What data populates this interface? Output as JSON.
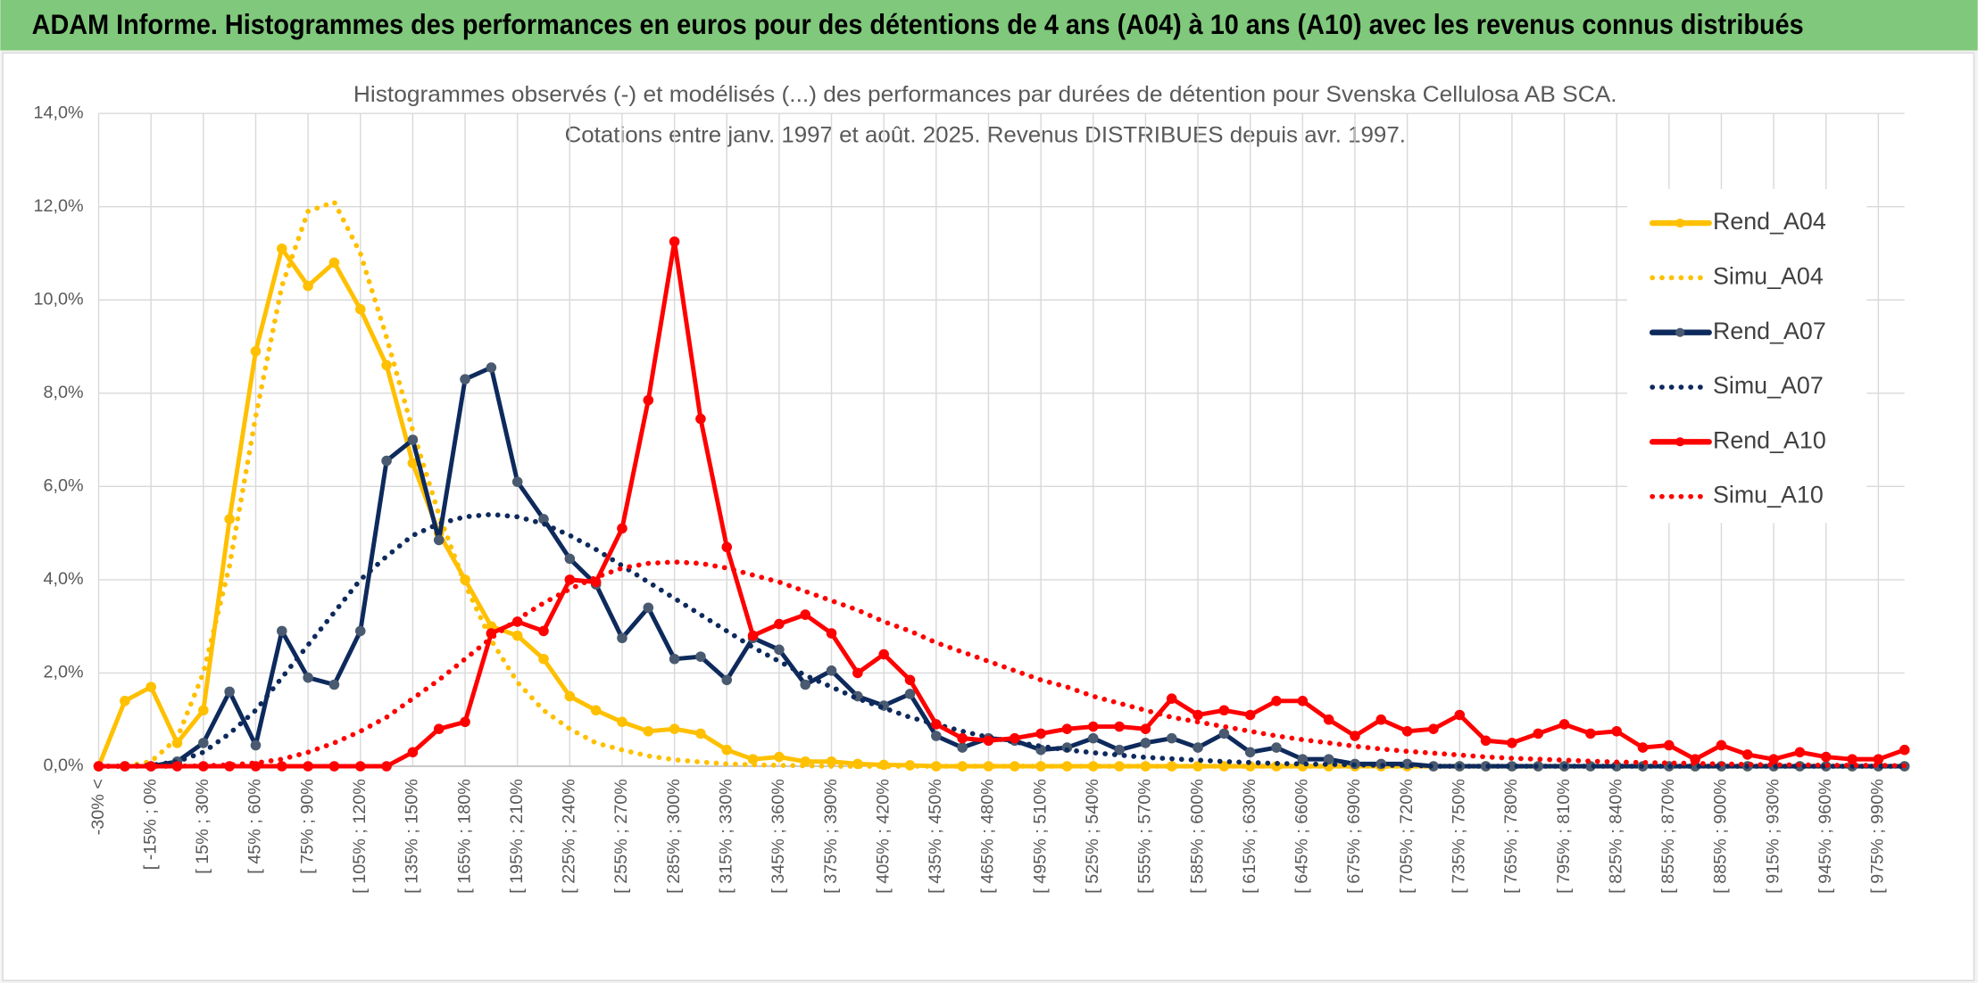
{
  "header": {
    "title": "ADAM Informe. Histogrammes des performances en euros pour des détentions de 4 ans (A04) à 10 ans (A10) avec les revenus connus distribués"
  },
  "chart_data": {
    "type": "line",
    "title": [
      "Histogrammes observés (-) et modélisés (...) des performances par durées de détention pour Svenska Cellulosa AB SCA.",
      "Cotations entre janv. 1997 et août. 2025. Revenus DISTRIBUES depuis avr. 1997."
    ],
    "categories": [
      "-30% <",
      null,
      "[ -15% ; 0%",
      null,
      "[ 15% ; 30%",
      null,
      "[ 45% ; 60%",
      null,
      "[ 75% ; 90%",
      null,
      "[ 105% ; 120%",
      null,
      "[ 135% ; 150%",
      null,
      "[ 165% ; 180%",
      null,
      "[ 195% ; 210%",
      null,
      "[ 225% ; 240%",
      null,
      "[ 255% ; 270%",
      null,
      "[ 285% ; 300%",
      null,
      "[ 315% ; 330%",
      null,
      "[ 345% ; 360%",
      null,
      "[ 375% ; 390%",
      null,
      "[ 405% ; 420%",
      null,
      "[ 435% ; 450%",
      null,
      "[ 465% ; 480%",
      null,
      "[ 495% ; 510%",
      null,
      "[ 525% ; 540%",
      null,
      "[ 555% ; 570%",
      null,
      "[ 585% ; 600%",
      null,
      "[ 615% ; 630%",
      null,
      "[ 645% ; 660%",
      null,
      "[ 675% ; 690%",
      null,
      "[ 705% ; 720%",
      null,
      "[ 735% ; 750%",
      null,
      "[ 765% ; 780%",
      null,
      "[ 795% ; 810%",
      null,
      "[ 825% ; 840%",
      null,
      "[ 855% ; 870%",
      null,
      "[ 885% ; 900%",
      null,
      "[ 915% ; 930%",
      null,
      "[ 945% ; 960%",
      null,
      "[ 975% ; 990%",
      null
    ],
    "series": [
      {
        "name": "Rend_A04",
        "color": "#ffc000",
        "dotted": false,
        "markers": true,
        "values": [
          0,
          1.4,
          1.7,
          0.5,
          1.2,
          5.3,
          8.9,
          11.1,
          10.3,
          10.8,
          9.8,
          8.6,
          6.5,
          5.0,
          4.0,
          3.0,
          2.8,
          2.3,
          1.5,
          1.2,
          0.95,
          0.75,
          0.8,
          0.7,
          0.35,
          0.15,
          0.2,
          0.1,
          0.1,
          0.05,
          0.03,
          0.02,
          0,
          0,
          0,
          0,
          0,
          0,
          0,
          0,
          0,
          0,
          0,
          0,
          0,
          0,
          0,
          0,
          0,
          0,
          0,
          0,
          0,
          0,
          0,
          0,
          0,
          0,
          0,
          0,
          0,
          0,
          0,
          0,
          0,
          0,
          0,
          0,
          0,
          0
        ]
      },
      {
        "name": "Simu_A04",
        "color": "#ffc000",
        "dotted": true,
        "markers": false,
        "values": [
          0,
          0,
          0.1,
          0.6,
          2.0,
          4.3,
          7.5,
          10.3,
          11.9,
          12.1,
          11.0,
          9.2,
          7.2,
          5.4,
          3.9,
          2.7,
          1.8,
          1.2,
          0.8,
          0.5,
          0.35,
          0.22,
          0.14,
          0.09,
          0.05,
          0.03,
          0.02,
          0.01,
          0,
          0,
          0,
          0,
          0,
          0,
          0,
          0,
          0,
          0,
          0,
          0,
          0,
          0,
          0,
          0,
          0,
          0,
          0,
          0,
          0,
          0,
          0,
          0,
          0,
          0,
          0,
          0,
          0,
          0,
          0,
          0,
          0,
          0,
          0,
          0,
          0,
          0,
          0,
          0,
          0,
          0
        ]
      },
      {
        "name": "Rend_A07",
        "color": "#0e2a5c",
        "marker_color": "#4a5a70",
        "dotted": false,
        "markers": true,
        "values": [
          0,
          0,
          0,
          0.1,
          0.5,
          1.6,
          0.45,
          2.9,
          1.9,
          1.75,
          2.9,
          6.55,
          7.0,
          4.85,
          8.3,
          8.55,
          6.1,
          5.3,
          4.45,
          3.9,
          2.75,
          3.4,
          2.3,
          2.35,
          1.85,
          2.75,
          2.5,
          1.75,
          2.05,
          1.5,
          1.3,
          1.55,
          0.65,
          0.4,
          0.6,
          0.55,
          0.35,
          0.4,
          0.6,
          0.35,
          0.5,
          0.6,
          0.4,
          0.7,
          0.3,
          0.4,
          0.15,
          0.15,
          0.05,
          0.05,
          0.05,
          0,
          0,
          0,
          0,
          0,
          0,
          0,
          0,
          0,
          0,
          0,
          0,
          0,
          0,
          0,
          0,
          0,
          0,
          0
        ]
      },
      {
        "name": "Simu_A07",
        "color": "#0e2a5c",
        "dotted": true,
        "markers": false,
        "values": [
          0,
          0,
          0.02,
          0.1,
          0.3,
          0.7,
          1.2,
          1.9,
          2.6,
          3.3,
          4.0,
          4.5,
          4.95,
          5.2,
          5.35,
          5.4,
          5.35,
          5.2,
          4.95,
          4.65,
          4.3,
          3.95,
          3.6,
          3.25,
          2.9,
          2.55,
          2.25,
          1.95,
          1.7,
          1.45,
          1.25,
          1.05,
          0.9,
          0.75,
          0.62,
          0.52,
          0.43,
          0.35,
          0.29,
          0.24,
          0.19,
          0.16,
          0.13,
          0.1,
          0.08,
          0.06,
          0.05,
          0.04,
          0.03,
          0.02,
          0.02,
          0,
          0,
          0,
          0,
          0,
          0,
          0,
          0,
          0,
          0,
          0,
          0,
          0,
          0,
          0,
          0,
          0,
          0,
          0
        ]
      },
      {
        "name": "Rend_A10",
        "color": "#ff0000",
        "dotted": false,
        "markers": true,
        "values": [
          0,
          0,
          0,
          0,
          0,
          0,
          0,
          0,
          0,
          0,
          0,
          0,
          0.3,
          0.8,
          0.95,
          2.85,
          3.1,
          2.9,
          4.0,
          3.95,
          5.1,
          7.85,
          11.25,
          7.45,
          4.7,
          2.8,
          3.05,
          3.25,
          2.85,
          2.0,
          2.4,
          1.85,
          0.9,
          0.6,
          0.55,
          0.6,
          0.7,
          0.8,
          0.85,
          0.85,
          0.8,
          1.45,
          1.1,
          1.2,
          1.1,
          1.4,
          1.4,
          1.0,
          0.65,
          1.0,
          0.75,
          0.8,
          1.1,
          0.55,
          0.5,
          0.7,
          0.9,
          0.7,
          0.75,
          0.4,
          0.45,
          0.15,
          0.45,
          0.25,
          0.15,
          0.3,
          0.2,
          0.15,
          0.15,
          0.35
        ]
      },
      {
        "name": "Simu_A10",
        "color": "#ff0000",
        "dotted": true,
        "markers": false,
        "values": [
          0,
          0,
          0,
          0,
          0.01,
          0.03,
          0.07,
          0.15,
          0.3,
          0.5,
          0.75,
          1.05,
          1.45,
          1.85,
          2.3,
          2.75,
          3.15,
          3.5,
          3.8,
          4.05,
          4.25,
          4.35,
          4.38,
          4.35,
          4.25,
          4.1,
          3.95,
          3.75,
          3.55,
          3.35,
          3.1,
          2.9,
          2.65,
          2.45,
          2.25,
          2.05,
          1.85,
          1.7,
          1.5,
          1.35,
          1.2,
          1.05,
          0.95,
          0.85,
          0.75,
          0.65,
          0.57,
          0.5,
          0.43,
          0.37,
          0.32,
          0.28,
          0.24,
          0.2,
          0.17,
          0.15,
          0.13,
          0.11,
          0.09,
          0.08,
          0.07,
          0.06,
          0.05,
          0.04,
          0.03,
          0.03,
          0.02,
          0.02,
          0.02,
          0.01
        ]
      }
    ],
    "ylim": [
      0,
      14
    ],
    "yticks": [
      {
        "value": 0,
        "label": "0,0%"
      },
      {
        "value": 2,
        "label": "2,0%"
      },
      {
        "value": 4,
        "label": "4,0%"
      },
      {
        "value": 6,
        "label": "6,0%"
      },
      {
        "value": 8,
        "label": "8,0%"
      },
      {
        "value": 10,
        "label": "10,0%"
      },
      {
        "value": 12,
        "label": "12,0%"
      },
      {
        "value": 14,
        "label": "14,0%"
      }
    ],
    "grid": true,
    "legend": "right"
  }
}
